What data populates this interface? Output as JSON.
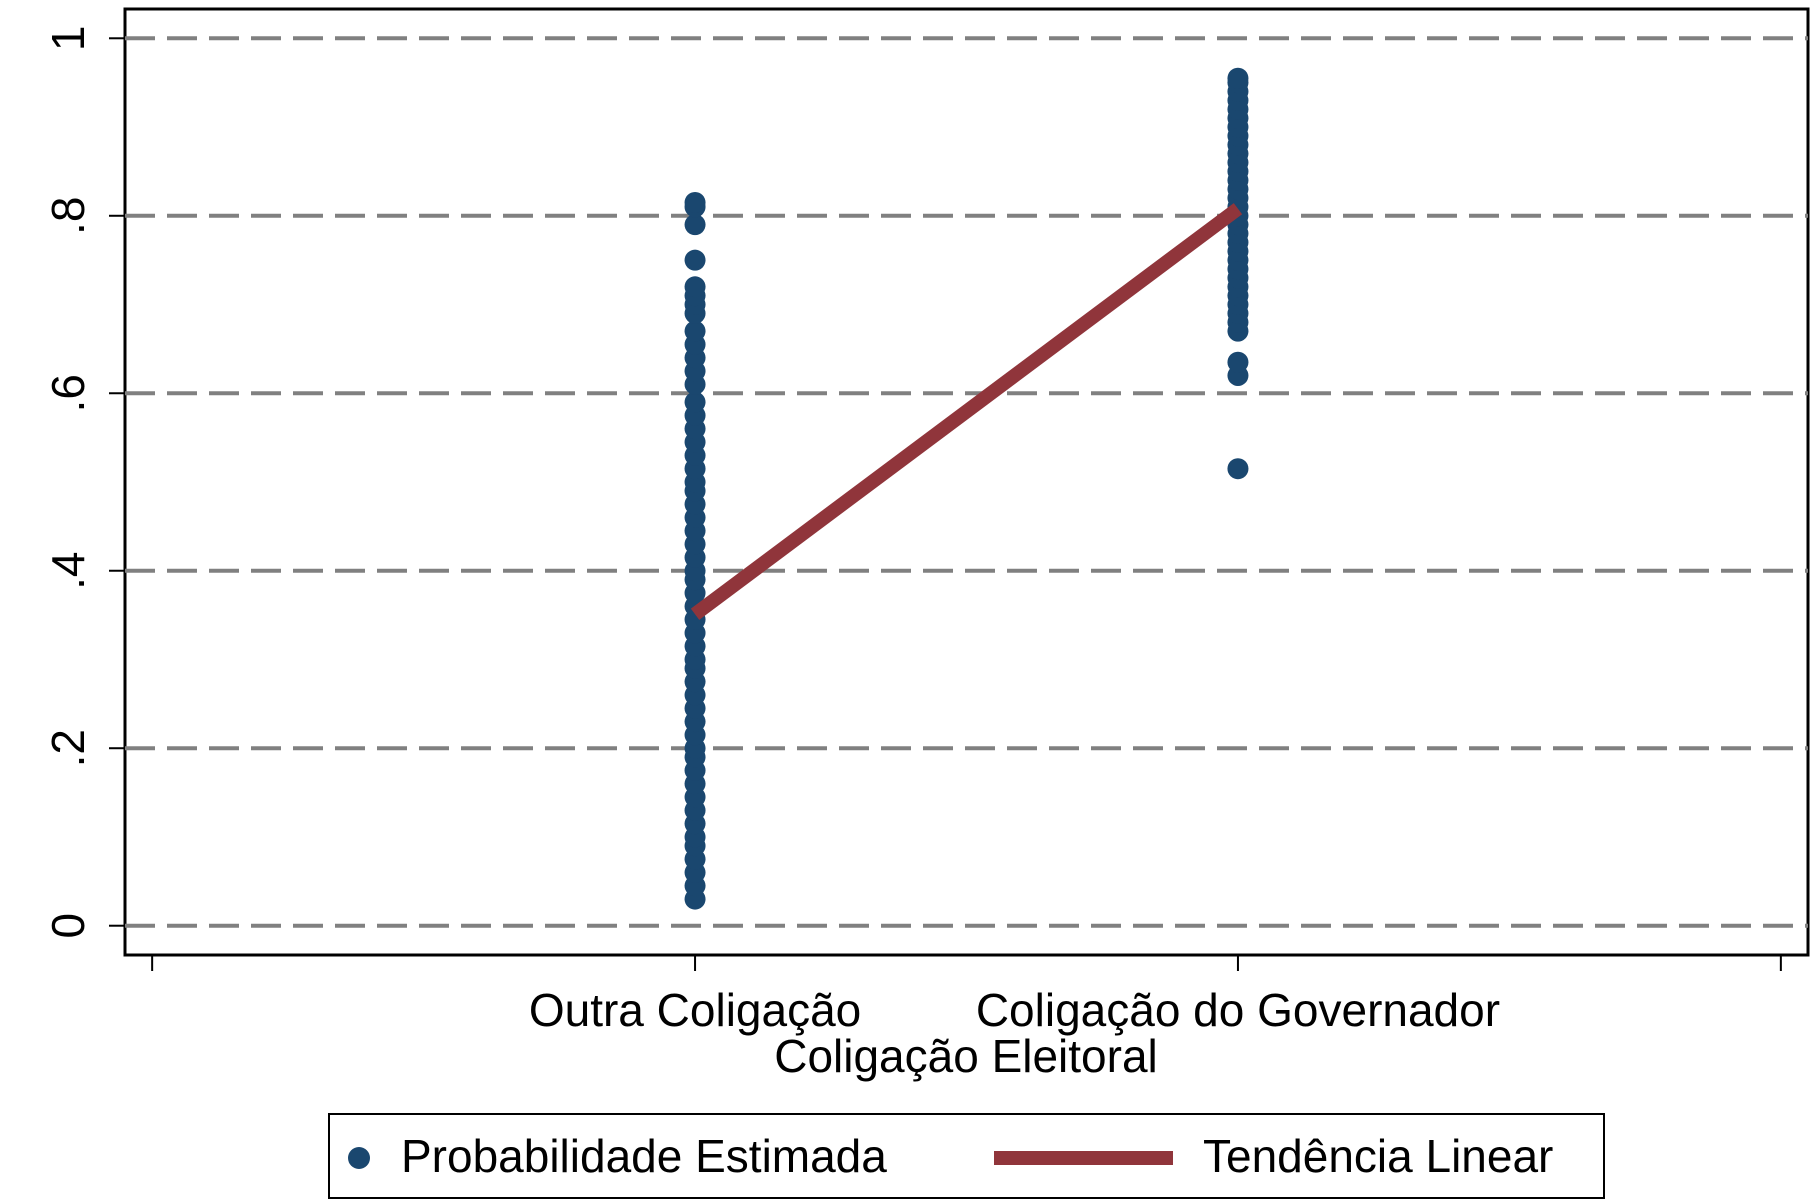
{
  "chart_data": {
    "type": "scatter",
    "xlabel": "Coligação Eleitoral",
    "xlim": [
      -1.05,
      2.05
    ],
    "xticks": [
      {
        "value": -1,
        "label": null
      },
      {
        "value": 0,
        "label": "Outra Coligação"
      },
      {
        "value": 1,
        "label": "Coligação do Governador"
      },
      {
        "value": 2,
        "label": null
      }
    ],
    "ylim": [
      -0.033,
      1.033
    ],
    "yticks": [
      0,
      {
        "value": 0.2,
        "label": ".2"
      },
      {
        "value": 0.4,
        "label": ".4"
      },
      {
        "value": 0.6,
        "label": ".6"
      },
      {
        "value": 0.8,
        "label": ".8"
      },
      1
    ],
    "grid": true,
    "legend": "bottom",
    "series": [
      {
        "name": "Probabilidade Estimada",
        "type": "scatter",
        "color": "#1a476f",
        "x": [
          0,
          0,
          0,
          0,
          0,
          0,
          0,
          0,
          0,
          0,
          0,
          0,
          0,
          0,
          0,
          0,
          0,
          0,
          0,
          0,
          0,
          0,
          0,
          0,
          0,
          0,
          0,
          0,
          0,
          0,
          0,
          0,
          0,
          0,
          0,
          0,
          0,
          0,
          0,
          0,
          0,
          0,
          0,
          0,
          0,
          0,
          0,
          0,
          0,
          0,
          0,
          0,
          0,
          1,
          1,
          1,
          1,
          1,
          1,
          1,
          1,
          1,
          1,
          1,
          1,
          1,
          1,
          1,
          1,
          1,
          1,
          1,
          1,
          1,
          1,
          1,
          1,
          1,
          1,
          1,
          1,
          1,
          1,
          1,
          1,
          1
        ],
        "values": [
          0.03,
          0.045,
          0.06,
          0.075,
          0.09,
          0.1,
          0.115,
          0.13,
          0.145,
          0.16,
          0.175,
          0.19,
          0.2,
          0.215,
          0.23,
          0.245,
          0.26,
          0.275,
          0.29,
          0.3,
          0.315,
          0.33,
          0.345,
          0.36,
          0.375,
          0.39,
          0.4,
          0.415,
          0.43,
          0.445,
          0.46,
          0.475,
          0.49,
          0.5,
          0.515,
          0.53,
          0.545,
          0.56,
          0.575,
          0.59,
          0.61,
          0.625,
          0.64,
          0.655,
          0.67,
          0.69,
          0.7,
          0.71,
          0.72,
          0.75,
          0.79,
          0.81,
          0.815,
          0.515,
          0.62,
          0.635,
          0.67,
          0.68,
          0.69,
          0.7,
          0.71,
          0.72,
          0.73,
          0.74,
          0.75,
          0.76,
          0.77,
          0.78,
          0.79,
          0.8,
          0.81,
          0.82,
          0.83,
          0.84,
          0.85,
          0.86,
          0.87,
          0.88,
          0.89,
          0.9,
          0.91,
          0.92,
          0.93,
          0.94,
          0.95,
          0.955
        ]
      },
      {
        "name": "Tendência Linear",
        "type": "line",
        "color": "#90353b",
        "x": [
          0,
          1
        ],
        "values": [
          0.351,
          0.808
        ]
      }
    ]
  }
}
